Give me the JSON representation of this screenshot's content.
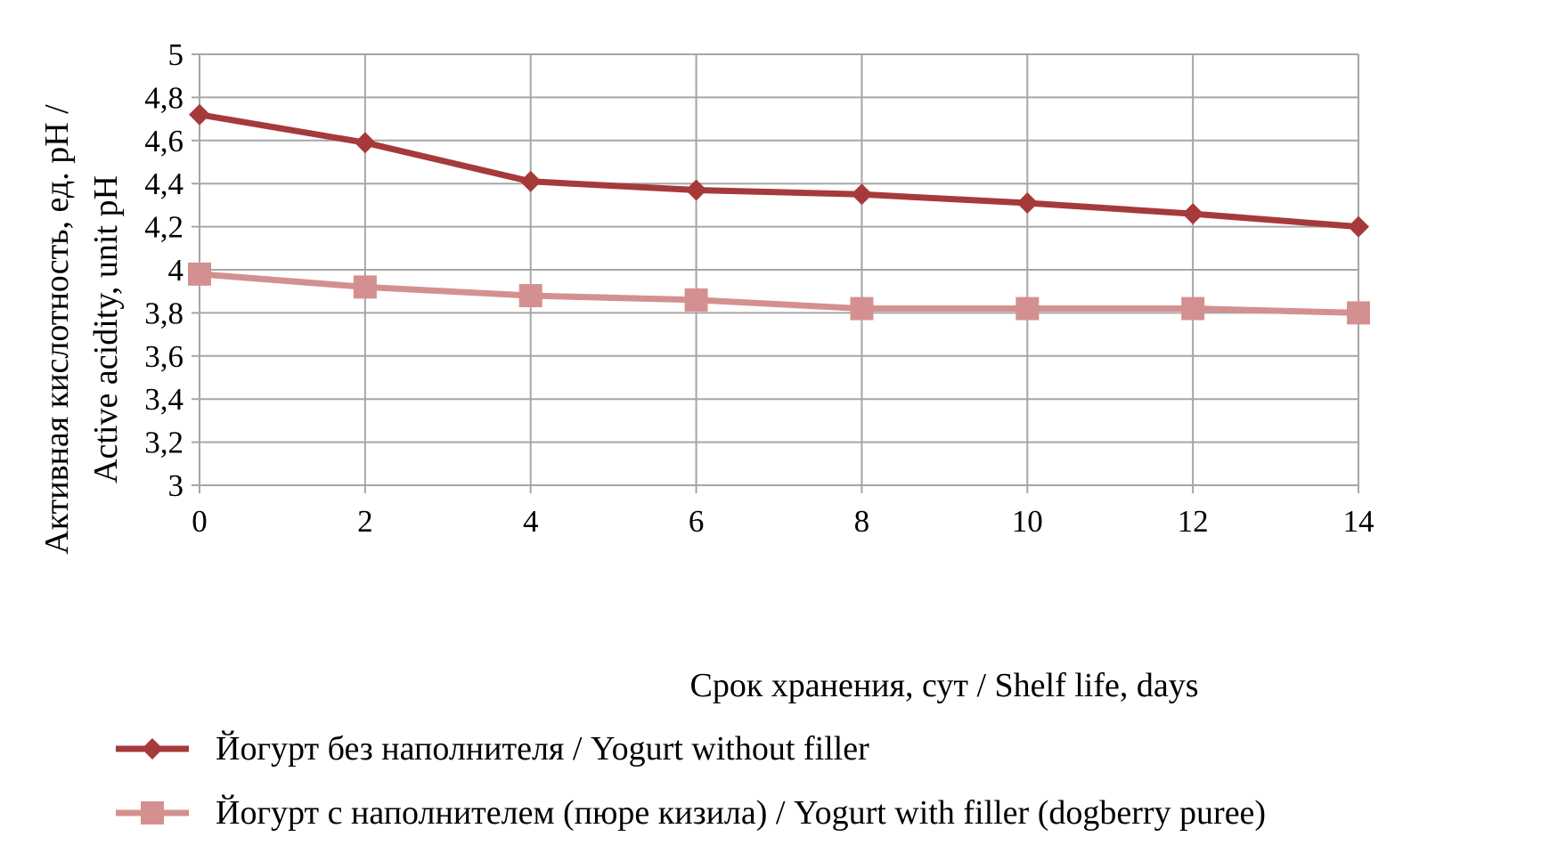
{
  "chart_data": {
    "type": "line",
    "xlabel": "Срок хранения, сут / Shelf life, days",
    "ylabel_lines": [
      "Активная кислотность, ед. pH /",
      "Active acidity, unit pH"
    ],
    "x": [
      0,
      2,
      4,
      6,
      8,
      10,
      12,
      14
    ],
    "xlim": [
      0,
      14
    ],
    "ylim": [
      3,
      5
    ],
    "ytick_labels": [
      "3",
      "3,2",
      "3,4",
      "3,6",
      "3,8",
      "4",
      "4,2",
      "4,4",
      "4,6",
      "4,8",
      "5"
    ],
    "xtick_labels": [
      "0",
      "2",
      "4",
      "6",
      "8",
      "10",
      "12",
      "14"
    ],
    "grid": true,
    "legend_position": "bottom",
    "series": [
      {
        "name": "Йогурт без наполнителя / Yogurt without filler",
        "values": [
          4.72,
          4.59,
          4.41,
          4.37,
          4.35,
          4.31,
          4.26,
          4.2
        ],
        "color": "#a63a3a",
        "marker": "diamond"
      },
      {
        "name": "Йогурт с наполнителем (пюре кизила) / Yogurt with filler (dogberry puree)",
        "values": [
          3.98,
          3.92,
          3.88,
          3.86,
          3.82,
          3.82,
          3.82,
          3.8
        ],
        "color": "#d49090",
        "marker": "square"
      }
    ]
  }
}
